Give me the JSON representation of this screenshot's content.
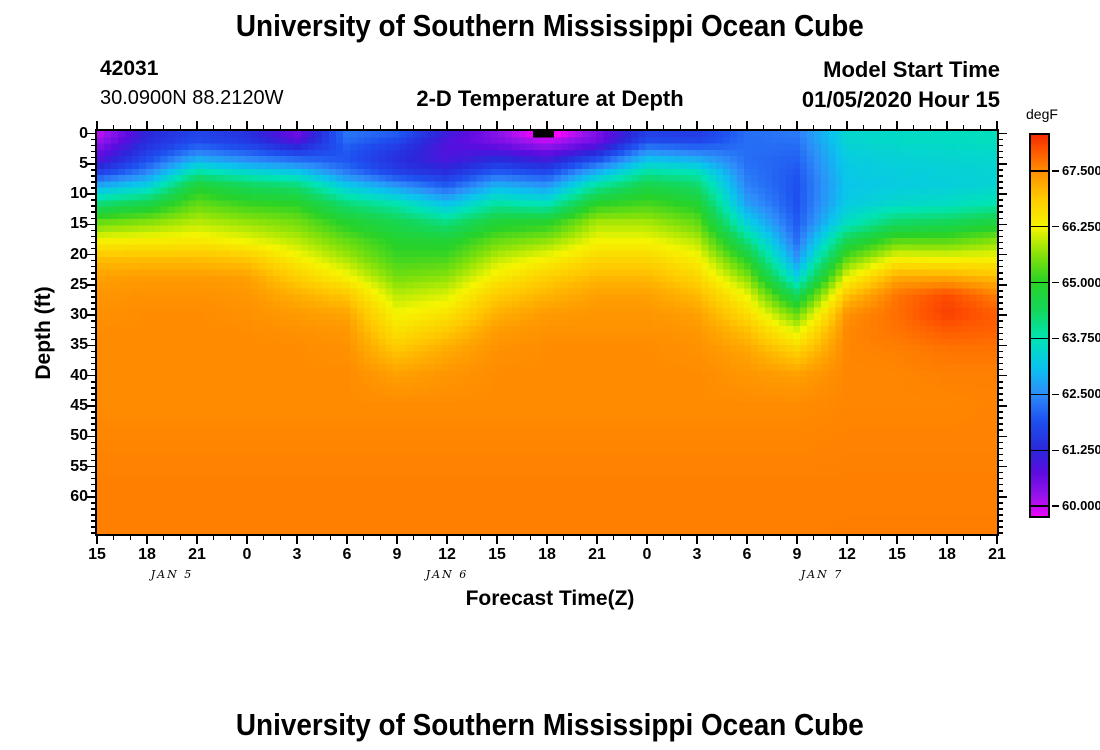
{
  "header": {
    "title": "University of Southern Mississippi Ocean Cube",
    "station_id": "42031",
    "coordinates": "30.0900N 88.2120W",
    "subtitle": "2-D Temperature at Depth",
    "model_start_label": "Model Start Time",
    "model_start_value": "01/05/2020 Hour 15"
  },
  "footer": {
    "title": "University of Southern Mississippi Ocean Cube"
  },
  "chart_data": {
    "type": "heatmap",
    "title": "2-D Temperature at Depth",
    "xlabel": "Forecast Time(Z)",
    "ylabel": "Depth (ft)",
    "units": "degF",
    "x_ticklabels": [
      "15",
      "18",
      "21",
      "0",
      "3",
      "6",
      "9",
      "12",
      "15",
      "18",
      "21",
      "0",
      "3",
      "6",
      "9",
      "12",
      "15",
      "18",
      "21"
    ],
    "date_labels": [
      {
        "text": "JAN 5",
        "hour": 4.5
      },
      {
        "text": "JAN 6",
        "hour": 21
      },
      {
        "text": "JAN 7",
        "hour": 43.5
      }
    ],
    "y_ticks": [
      0,
      5,
      10,
      15,
      20,
      25,
      30,
      35,
      40,
      45,
      50,
      55,
      60
    ],
    "hours_range": [
      0,
      54
    ],
    "depth_range": [
      0,
      66.3
    ],
    "x_hours": [
      0,
      3,
      6,
      9,
      12,
      15,
      18,
      21,
      24,
      27,
      30,
      33,
      36,
      39,
      42,
      45,
      48,
      51,
      54
    ],
    "depths": [
      0,
      1.5,
      3,
      5,
      7,
      9,
      12,
      15,
      18,
      21,
      24,
      27,
      30,
      33,
      36,
      40,
      45,
      50,
      58,
      66
    ],
    "grid_by_column": [
      [
        59.9,
        60.15,
        60.5,
        60.9,
        61.7,
        62.8,
        64.2,
        65.4,
        66.3,
        67.0,
        67.3,
        67.4,
        67.45,
        67.5,
        67.5,
        67.5,
        67.5,
        67.55,
        67.6,
        67.6
      ],
      [
        61.2,
        61.3,
        61.5,
        61.9,
        62.5,
        63.3,
        64.6,
        65.6,
        66.35,
        67.0,
        67.35,
        67.45,
        67.5,
        67.5,
        67.5,
        67.5,
        67.5,
        67.55,
        67.6,
        67.6
      ],
      [
        61.7,
        61.8,
        62.2,
        63.0,
        64.0,
        64.8,
        65.4,
        65.9,
        66.4,
        67.0,
        67.35,
        67.45,
        67.5,
        67.5,
        67.5,
        67.5,
        67.5,
        67.55,
        67.6,
        67.6
      ],
      [
        61.4,
        61.5,
        61.9,
        62.6,
        63.6,
        64.4,
        65.1,
        65.7,
        66.2,
        66.9,
        67.3,
        67.4,
        67.45,
        67.5,
        67.5,
        67.5,
        67.5,
        67.55,
        67.6,
        67.6
      ],
      [
        60.5,
        60.8,
        61.4,
        62.3,
        63.3,
        64.2,
        65.0,
        65.5,
        65.9,
        66.35,
        66.8,
        67.15,
        67.35,
        67.45,
        67.5,
        67.5,
        67.5,
        67.55,
        67.6,
        67.6
      ],
      [
        62.3,
        62.2,
        62.0,
        61.95,
        62.4,
        63.2,
        64.2,
        64.9,
        65.4,
        65.8,
        66.3,
        66.9,
        67.25,
        67.4,
        67.45,
        67.5,
        67.5,
        67.55,
        67.6,
        67.6
      ],
      [
        62.1,
        61.8,
        61.5,
        61.35,
        61.7,
        62.6,
        63.8,
        64.5,
        64.9,
        65.15,
        65.5,
        65.9,
        66.25,
        66.55,
        66.9,
        67.3,
        67.5,
        67.55,
        67.6,
        67.6
      ],
      [
        61.1,
        60.9,
        60.85,
        60.95,
        61.4,
        62.0,
        63.1,
        64.1,
        64.8,
        65.2,
        65.65,
        66.1,
        66.5,
        66.9,
        67.2,
        67.4,
        67.5,
        67.55,
        67.6,
        67.6
      ],
      [
        60.35,
        60.45,
        60.8,
        61.4,
        62.1,
        62.9,
        63.9,
        64.8,
        65.4,
        65.95,
        66.4,
        66.85,
        67.15,
        67.35,
        67.45,
        67.5,
        67.5,
        67.55,
        67.6,
        67.6
      ],
      [
        59.3,
        59.95,
        60.45,
        61.1,
        61.85,
        62.6,
        63.7,
        64.9,
        65.65,
        66.3,
        66.8,
        67.1,
        67.35,
        67.45,
        67.5,
        67.5,
        67.5,
        67.55,
        67.6,
        67.6
      ],
      [
        60.45,
        60.55,
        61.0,
        62.0,
        63.0,
        63.9,
        65.0,
        65.8,
        66.25,
        66.7,
        67.05,
        67.3,
        67.4,
        67.45,
        67.5,
        67.5,
        67.5,
        67.55,
        67.6,
        67.6
      ],
      [
        61.6,
        61.8,
        62.4,
        63.2,
        64.0,
        64.6,
        65.2,
        65.8,
        66.25,
        66.7,
        67.05,
        67.3,
        67.4,
        67.45,
        67.5,
        67.5,
        67.5,
        67.55,
        67.6,
        67.6
      ],
      [
        61.5,
        61.7,
        62.2,
        63.0,
        63.8,
        64.3,
        64.9,
        65.4,
        65.9,
        66.35,
        66.7,
        67.05,
        67.3,
        67.4,
        67.45,
        67.5,
        67.5,
        67.55,
        67.6,
        67.6
      ],
      [
        62.2,
        62.2,
        62.2,
        62.2,
        62.3,
        62.4,
        62.7,
        63.3,
        64.1,
        64.9,
        65.6,
        66.2,
        66.6,
        67.0,
        67.25,
        67.4,
        67.5,
        67.55,
        67.6,
        67.6
      ],
      [
        62.35,
        62.25,
        62.15,
        62.05,
        61.95,
        61.9,
        61.9,
        62.0,
        62.2,
        62.6,
        63.3,
        64.4,
        65.4,
        66.15,
        66.75,
        67.3,
        67.5,
        67.55,
        67.6,
        67.6
      ],
      [
        63.45,
        63.45,
        63.35,
        63.25,
        63.2,
        63.15,
        63.25,
        63.6,
        64.5,
        65.35,
        66.2,
        66.95,
        67.45,
        67.55,
        67.55,
        67.55,
        67.55,
        67.58,
        67.6,
        67.62
      ],
      [
        63.55,
        63.55,
        63.45,
        63.35,
        63.3,
        63.25,
        63.5,
        64.3,
        65.3,
        66.3,
        67.2,
        67.7,
        67.75,
        67.7,
        67.6,
        67.55,
        67.55,
        67.58,
        67.6,
        67.62
      ],
      [
        63.6,
        63.6,
        63.5,
        63.4,
        63.35,
        63.3,
        63.6,
        64.4,
        65.3,
        66.25,
        67.2,
        68.05,
        68.15,
        67.9,
        67.7,
        67.6,
        67.55,
        67.58,
        67.6,
        67.62
      ],
      [
        63.65,
        63.65,
        63.55,
        63.45,
        63.4,
        63.4,
        63.8,
        64.7,
        65.6,
        66.3,
        67.0,
        67.6,
        67.9,
        67.85,
        67.7,
        67.6,
        67.58,
        67.58,
        67.6,
        67.62
      ]
    ],
    "colorbar": {
      "label": "degF",
      "ticks": [
        "67.500",
        "66.250",
        "65.000",
        "63.750",
        "62.500",
        "61.250",
        "60.000"
      ],
      "tick_values": [
        67.5,
        66.25,
        65.0,
        63.75,
        62.5,
        61.25,
        60.0
      ],
      "min": 59.78,
      "max": 68.3,
      "below_min_color": "#000000",
      "stops": [
        [
          59.72,
          "#ff00ff"
        ],
        [
          59.9,
          "#d20af6"
        ],
        [
          60.25,
          "#9414ec"
        ],
        [
          60.75,
          "#5c0ce0"
        ],
        [
          61.25,
          "#2a28da"
        ],
        [
          61.9,
          "#1e50f0"
        ],
        [
          62.5,
          "#2e8cfa"
        ],
        [
          63.1,
          "#0ac4ee"
        ],
        [
          63.75,
          "#00e4b4"
        ],
        [
          64.4,
          "#14d75a"
        ],
        [
          65.0,
          "#28d228"
        ],
        [
          65.6,
          "#82e10a"
        ],
        [
          66.25,
          "#f5f500"
        ],
        [
          66.9,
          "#ffc800"
        ],
        [
          67.5,
          "#ff8c00"
        ],
        [
          68.0,
          "#ff5000"
        ],
        [
          68.4,
          "#ee2200"
        ]
      ]
    }
  }
}
